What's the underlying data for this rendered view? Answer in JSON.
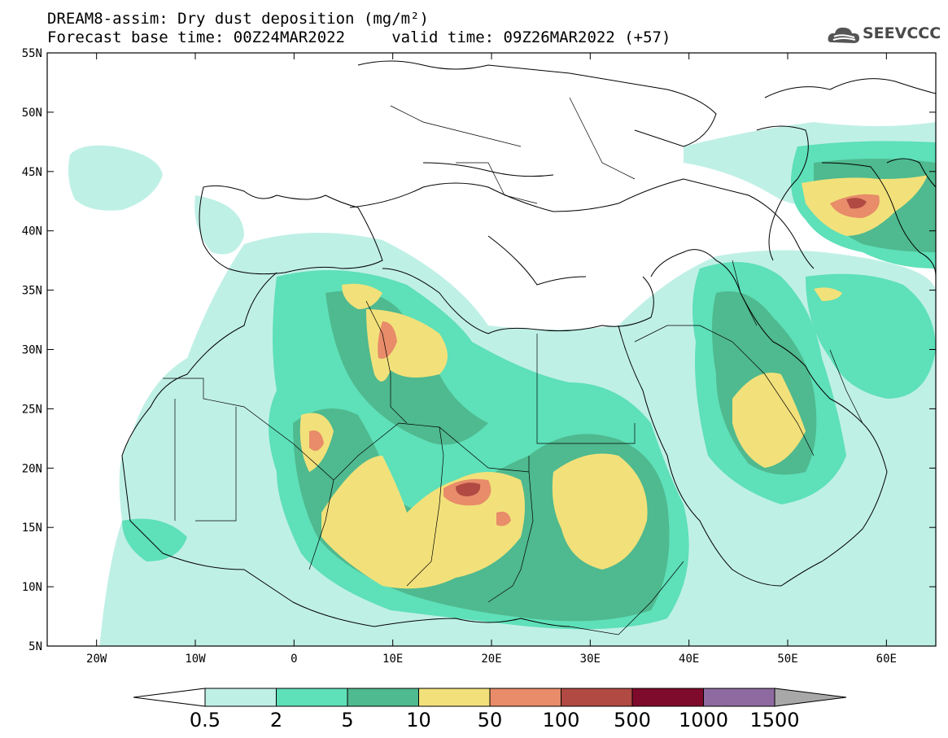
{
  "title_line1": "DREAM8-assim: Dry dust deposition (mg/m²)",
  "title_line2": "Forecast base time: 00Z24MAR2022     valid time: 09Z26MAR2022 (+57)",
  "logo_text": "SEEVCCC",
  "logo_icon": "cloud-icon",
  "map": {
    "lon_range": [
      -25,
      65
    ],
    "lat_range": [
      5,
      55
    ],
    "lat_ticks": [
      {
        "value": 55,
        "label": "55N"
      },
      {
        "value": 50,
        "label": "50N"
      },
      {
        "value": 45,
        "label": "45N"
      },
      {
        "value": 40,
        "label": "40N"
      },
      {
        "value": 35,
        "label": "35N"
      },
      {
        "value": 30,
        "label": "30N"
      },
      {
        "value": 25,
        "label": "25N"
      },
      {
        "value": 20,
        "label": "20N"
      },
      {
        "value": 15,
        "label": "15N"
      },
      {
        "value": 10,
        "label": "10N"
      },
      {
        "value": 5,
        "label": "5N"
      }
    ],
    "lon_ticks": [
      {
        "value": -20,
        "label": "20W"
      },
      {
        "value": -10,
        "label": "10W"
      },
      {
        "value": 0,
        "label": "0"
      },
      {
        "value": 10,
        "label": "10E"
      },
      {
        "value": 20,
        "label": "20E"
      },
      {
        "value": 30,
        "label": "30E"
      },
      {
        "value": 40,
        "label": "40E"
      },
      {
        "value": 50,
        "label": "50E"
      },
      {
        "value": 60,
        "label": "60E"
      }
    ]
  },
  "colorbar": {
    "labels": [
      "0.5",
      "2",
      "5",
      "10",
      "50",
      "100",
      "500",
      "1000",
      "1500"
    ],
    "colors": [
      "#bff0e6",
      "#5ee0b8",
      "#4fb98f",
      "#f2e17a",
      "#e88c6a",
      "#b04a42",
      "#7e0b2c",
      "#8e6aa0"
    ],
    "under_color": "#ffffff",
    "over_color": "#a8a8a8"
  }
}
